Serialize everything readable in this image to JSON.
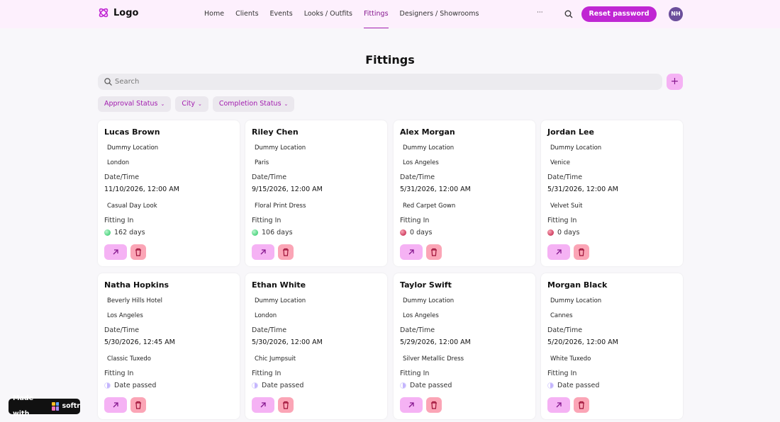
{
  "nav": {
    "logo": "Logo",
    "items": [
      "Home",
      "Clients",
      "Events",
      "Looks / Outfits",
      "Fittings",
      "Designers / Showrooms"
    ],
    "active": 4,
    "more": "···",
    "button": "Reset password",
    "avatar": "NH"
  },
  "page": {
    "title": "Fittings",
    "search_placeholder": "Search",
    "add": "+",
    "filters": [
      "Approval Status",
      "City",
      "Completion Status"
    ]
  },
  "labels": {
    "date_time": "Date/Time",
    "fitting_in": "Fitting In"
  },
  "cards": [
    {
      "name": "Lucas Brown",
      "location": "Dummy Location",
      "city": "London",
      "datetime": "11/10/2026, 12:00 AM",
      "look": "Casual Day Look",
      "fitting_in": "162 days",
      "status": "upcoming"
    },
    {
      "name": "Riley Chen",
      "location": "Dummy Location",
      "city": "Paris",
      "datetime": "9/15/2026, 12:00 AM",
      "look": "Floral Print Dress",
      "fitting_in": "106 days",
      "status": "upcoming"
    },
    {
      "name": "Alex Morgan",
      "location": "Dummy Location",
      "city": "Los Angeles",
      "datetime": "5/31/2026, 12:00 AM",
      "look": "Red Carpet Gown",
      "fitting_in": "0 days",
      "status": "today"
    },
    {
      "name": "Jordan Lee",
      "location": "Dummy Location",
      "city": "Venice",
      "datetime": "5/31/2026, 12:00 AM",
      "look": "Velvet Suit",
      "fitting_in": "0 days",
      "status": "today"
    },
    {
      "name": "Natha Hopkins",
      "location": "Beverly Hills Hotel",
      "city": "Los Angeles",
      "datetime": "5/30/2026, 12:45 AM",
      "look": "Classic Tuxedo",
      "fitting_in": "Date passed",
      "status": "passed"
    },
    {
      "name": "Ethan White",
      "location": "Dummy Location",
      "city": "London",
      "datetime": "5/30/2026, 12:00 AM",
      "look": "Chic Jumpsuit",
      "fitting_in": "Date passed",
      "status": "passed"
    },
    {
      "name": "Taylor Swift",
      "location": "Dummy Location",
      "city": "Los Angeles",
      "datetime": "5/29/2026, 12:00 AM",
      "look": "Silver Metallic Dress",
      "fitting_in": "Date passed",
      "status": "passed"
    },
    {
      "name": "Morgan Black",
      "location": "Dummy Location",
      "city": "Cannes",
      "datetime": "5/20/2026, 12:00 AM",
      "look": "White Tuxedo",
      "fitting_in": "Date passed",
      "status": "passed"
    }
  ],
  "badge": {
    "text": "Made with",
    "brand": "softr"
  }
}
